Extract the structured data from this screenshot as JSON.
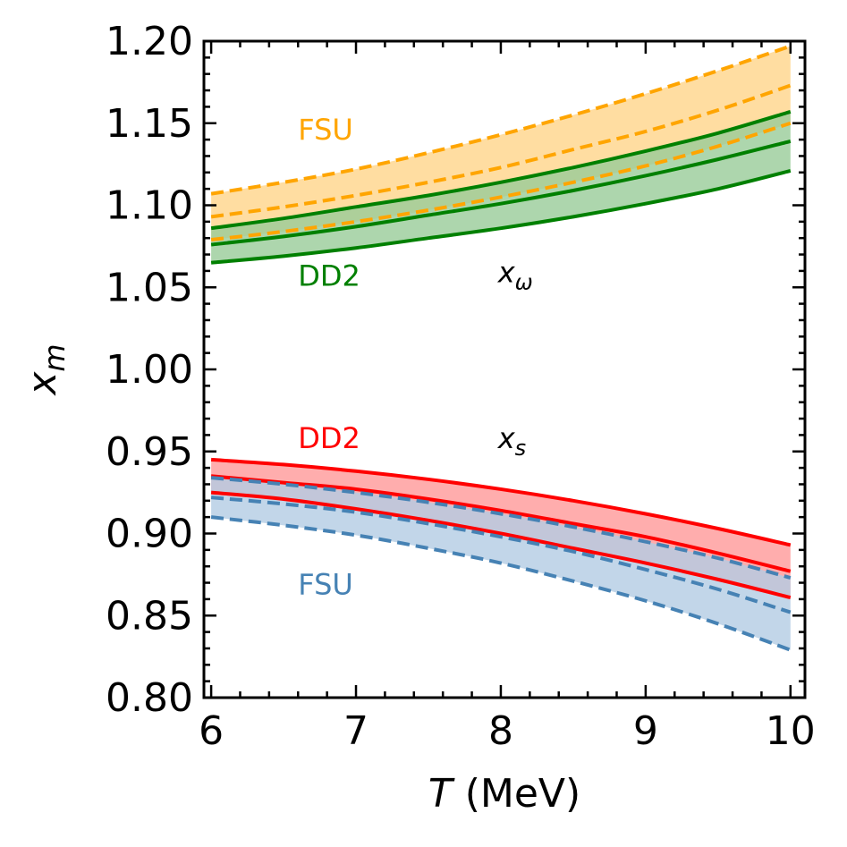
{
  "chart_data": {
    "type": "area",
    "xlabel": {
      "italic": "T",
      "rest": " (MeV)"
    },
    "ylabel": {
      "base": "x",
      "sub": "m"
    },
    "xlim": [
      5.95,
      10.1
    ],
    "ylim": [
      0.8,
      1.2
    ],
    "xticks": [
      6,
      7,
      8,
      9,
      10
    ],
    "xtick_labels": [
      "6",
      "7",
      "8",
      "9",
      "10"
    ],
    "yticks": [
      0.8,
      0.85,
      0.9,
      0.95,
      1.0,
      1.05,
      1.1,
      1.15,
      1.2
    ],
    "ytick_labels": [
      "0.80",
      "0.85",
      "0.90",
      "0.95",
      "1.00",
      "1.05",
      "1.10",
      "1.15",
      "1.20"
    ],
    "grid": false,
    "x": [
      6,
      6.5,
      7,
      7.5,
      8,
      8.5,
      9,
      9.5,
      10
    ],
    "series": [
      {
        "name": "FSU",
        "group": "x_omega",
        "color": "#FFA500",
        "fill": "#FFD48A",
        "dashed": true,
        "lower": [
          1.079,
          1.084,
          1.09,
          1.097,
          1.105,
          1.114,
          1.124,
          1.136,
          1.15
        ],
        "middle": [
          1.093,
          1.099,
          1.106,
          1.114,
          1.123,
          1.134,
          1.145,
          1.158,
          1.173
        ],
        "upper": [
          1.107,
          1.114,
          1.122,
          1.132,
          1.143,
          1.155,
          1.168,
          1.182,
          1.197
        ]
      },
      {
        "name": "DD2",
        "group": "x_omega",
        "color": "#008000",
        "fill": "#99CC99",
        "dashed": false,
        "lower": [
          1.065,
          1.069,
          1.074,
          1.08,
          1.086,
          1.093,
          1.101,
          1.11,
          1.121
        ],
        "middle": [
          1.076,
          1.081,
          1.087,
          1.094,
          1.101,
          1.109,
          1.118,
          1.128,
          1.139
        ],
        "upper": [
          1.086,
          1.092,
          1.099,
          1.106,
          1.114,
          1.123,
          1.133,
          1.144,
          1.157
        ]
      },
      {
        "name": "DD2",
        "group": "x_s",
        "color": "#FF0000",
        "fill": "#FF9999",
        "dashed": false,
        "lower": [
          0.925,
          0.921,
          0.915,
          0.908,
          0.9,
          0.891,
          0.882,
          0.872,
          0.861
        ],
        "middle": [
          0.935,
          0.931,
          0.927,
          0.921,
          0.914,
          0.906,
          0.898,
          0.888,
          0.877
        ],
        "upper": [
          0.945,
          0.942,
          0.938,
          0.933,
          0.927,
          0.92,
          0.912,
          0.903,
          0.893
        ]
      },
      {
        "name": "FSU",
        "group": "x_s",
        "color": "#4682B4",
        "fill": "#B3CCE3",
        "dashed": true,
        "lower": [
          0.91,
          0.905,
          0.899,
          0.891,
          0.882,
          0.871,
          0.859,
          0.845,
          0.829
        ],
        "middle": [
          0.922,
          0.918,
          0.913,
          0.906,
          0.898,
          0.889,
          0.878,
          0.866,
          0.852
        ],
        "upper": [
          0.934,
          0.93,
          0.925,
          0.919,
          0.912,
          0.904,
          0.895,
          0.885,
          0.873
        ]
      }
    ],
    "annotations": [
      {
        "key": "fsu_top",
        "text": "FSU",
        "color": "#FFA500",
        "x": 6.6,
        "y": 1.14
      },
      {
        "key": "dd2_top",
        "text": "DD2",
        "color": "#008000",
        "x": 6.6,
        "y": 1.051
      },
      {
        "key": "x_omega",
        "base": "x",
        "sub": "ω",
        "color": "#000000",
        "x": 7.98,
        "y": 1.053
      },
      {
        "key": "dd2_bottom",
        "text": "DD2",
        "color": "#FF0000",
        "x": 6.6,
        "y": 0.952
      },
      {
        "key": "x_s",
        "base": "x",
        "sub": "s",
        "color": "#000000",
        "x": 7.98,
        "y": 0.952
      },
      {
        "key": "fsu_bottom",
        "text": "FSU",
        "color": "#4682B4",
        "x": 6.6,
        "y": 0.863
      }
    ]
  }
}
